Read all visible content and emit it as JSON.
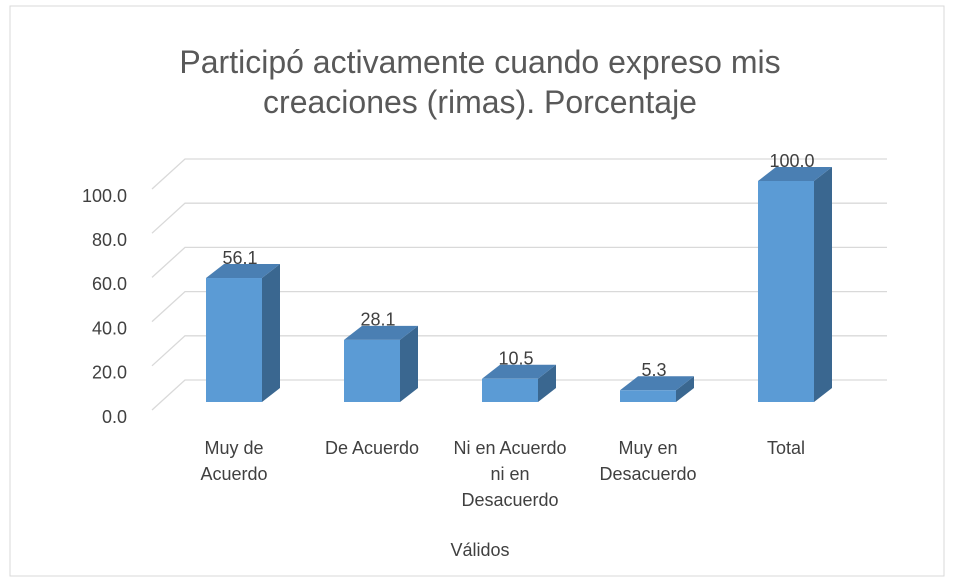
{
  "chart_data": {
    "type": "bar3d",
    "title": "Participó activamente cuando expreso mis creaciones (rimas). Porcentaje",
    "categories": [
      "Muy de Acuerdo",
      "De Acuerdo",
      "Ni en Acuerdo ni en Desacuerdo",
      "Muy en Desacuerdo",
      "Total"
    ],
    "values": [
      56.1,
      28.1,
      10.5,
      5.3,
      100
    ],
    "value_labels": [
      "56.1",
      "28.1",
      "10.5",
      "5.3",
      "100.0"
    ],
    "color": "#5b9bd5",
    "xlabel": "Válidos",
    "ylim": [
      0,
      100
    ],
    "yticks": [
      {
        "value": 0,
        "label": "0.0"
      },
      {
        "value": 20,
        "label": "20.0"
      },
      {
        "value": 40,
        "label": "40.0"
      },
      {
        "value": 60,
        "label": "60.0"
      },
      {
        "value": 80,
        "label": "80.0"
      },
      {
        "value": 100,
        "label": "100.0"
      }
    ],
    "grid": true
  }
}
